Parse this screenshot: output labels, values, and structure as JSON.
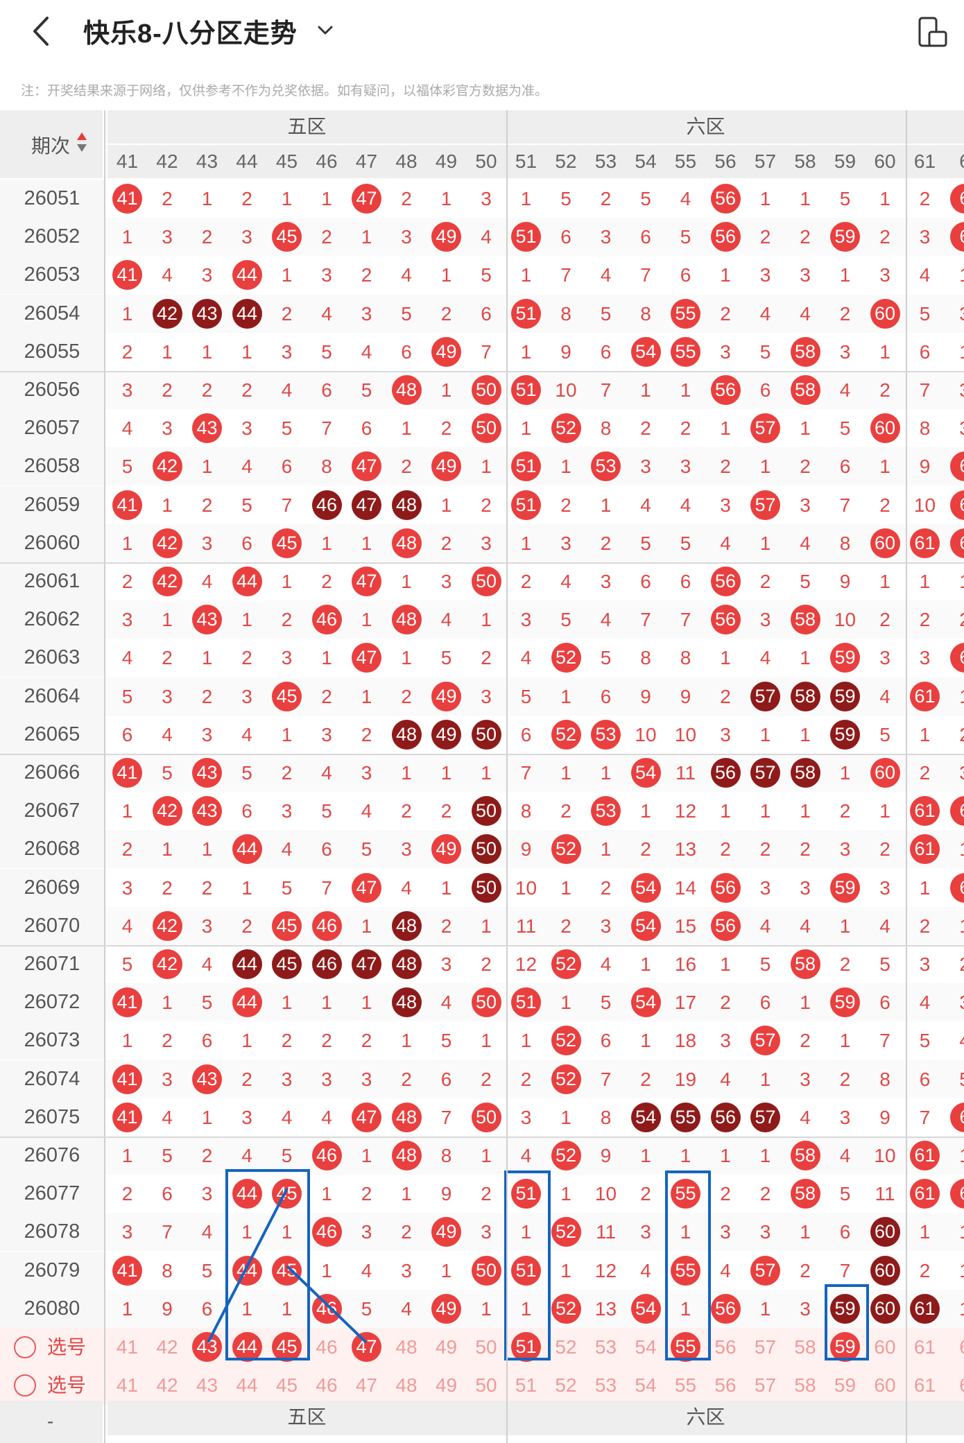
{
  "header": {
    "title": "快乐8-八分区走势",
    "note": "注：开奖结果来源于网络，仅供参考不作为兑奖依据。如有疑问，以福体彩官方数据为准。"
  },
  "table": {
    "period_header": "期次",
    "zones": [
      "五区",
      "六区"
    ],
    "columns": [
      "41",
      "42",
      "43",
      "44",
      "45",
      "46",
      "47",
      "48",
      "49",
      "50",
      "51",
      "52",
      "53",
      "54",
      "55",
      "56",
      "57",
      "58",
      "59",
      "60",
      "61",
      "6"
    ],
    "rows": [
      {
        "period": "26051",
        "cells": [
          "41",
          "2",
          "1",
          "2",
          "1",
          "1",
          "47",
          "2",
          "1",
          "3",
          "1",
          "5",
          "2",
          "5",
          "4",
          "56",
          "1",
          "1",
          "5",
          "1",
          "2",
          "6"
        ]
      },
      {
        "period": "26052",
        "cells": [
          "1",
          "3",
          "2",
          "3",
          "45",
          "2",
          "1",
          "3",
          "49",
          "4",
          "51",
          "6",
          "3",
          "6",
          "5",
          "56",
          "2",
          "2",
          "59",
          "2",
          "3",
          "6"
        ]
      },
      {
        "period": "26053",
        "cells": [
          "41",
          "4",
          "3",
          "44",
          "1",
          "3",
          "2",
          "4",
          "1",
          "5",
          "1",
          "7",
          "4",
          "7",
          "6",
          "1",
          "3",
          "3",
          "1",
          "3",
          "4",
          "1"
        ]
      },
      {
        "period": "26054",
        "cells": [
          "1",
          "42",
          "43",
          "44",
          "2",
          "4",
          "3",
          "5",
          "2",
          "6",
          "51",
          "8",
          "5",
          "8",
          "55",
          "2",
          "4",
          "4",
          "2",
          "60",
          "5",
          "3"
        ]
      },
      {
        "period": "26055",
        "cells": [
          "2",
          "1",
          "1",
          "1",
          "3",
          "5",
          "4",
          "6",
          "49",
          "7",
          "1",
          "9",
          "6",
          "54",
          "55",
          "3",
          "5",
          "58",
          "3",
          "1",
          "6",
          "1"
        ]
      },
      {
        "period": "26056",
        "cells": [
          "3",
          "2",
          "2",
          "2",
          "4",
          "6",
          "5",
          "48",
          "1",
          "50",
          "51",
          "10",
          "7",
          "1",
          "1",
          "56",
          "6",
          "58",
          "4",
          "2",
          "7",
          "3"
        ]
      },
      {
        "period": "26057",
        "cells": [
          "4",
          "3",
          "43",
          "3",
          "5",
          "7",
          "6",
          "1",
          "2",
          "50",
          "1",
          "52",
          "8",
          "2",
          "2",
          "1",
          "57",
          "1",
          "5",
          "60",
          "8",
          "3"
        ]
      },
      {
        "period": "26058",
        "cells": [
          "5",
          "42",
          "1",
          "4",
          "6",
          "8",
          "47",
          "2",
          "49",
          "1",
          "51",
          "1",
          "53",
          "3",
          "3",
          "2",
          "1",
          "2",
          "6",
          "1",
          "9",
          "6"
        ]
      },
      {
        "period": "26059",
        "cells": [
          "41",
          "1",
          "2",
          "5",
          "7",
          "46",
          "47",
          "48",
          "1",
          "2",
          "51",
          "2",
          "1",
          "4",
          "4",
          "3",
          "57",
          "3",
          "7",
          "2",
          "10",
          "6"
        ]
      },
      {
        "period": "26060",
        "cells": [
          "1",
          "42",
          "3",
          "6",
          "45",
          "1",
          "1",
          "48",
          "2",
          "3",
          "1",
          "3",
          "2",
          "5",
          "5",
          "4",
          "1",
          "4",
          "8",
          "60",
          "61",
          "6"
        ]
      },
      {
        "period": "26061",
        "cells": [
          "2",
          "42",
          "4",
          "44",
          "1",
          "2",
          "47",
          "1",
          "3",
          "50",
          "2",
          "4",
          "3",
          "6",
          "6",
          "56",
          "2",
          "5",
          "9",
          "1",
          "1",
          "1"
        ]
      },
      {
        "period": "26062",
        "cells": [
          "3",
          "1",
          "43",
          "1",
          "2",
          "46",
          "1",
          "48",
          "4",
          "1",
          "3",
          "5",
          "4",
          "7",
          "7",
          "56",
          "3",
          "58",
          "10",
          "2",
          "2",
          "2"
        ]
      },
      {
        "period": "26063",
        "cells": [
          "4",
          "2",
          "1",
          "2",
          "3",
          "1",
          "47",
          "1",
          "5",
          "2",
          "4",
          "52",
          "5",
          "8",
          "8",
          "1",
          "4",
          "1",
          "59",
          "3",
          "3",
          "6"
        ]
      },
      {
        "period": "26064",
        "cells": [
          "5",
          "3",
          "2",
          "3",
          "45",
          "2",
          "1",
          "2",
          "49",
          "3",
          "5",
          "1",
          "6",
          "9",
          "9",
          "2",
          "57",
          "58",
          "59",
          "4",
          "61",
          "1"
        ]
      },
      {
        "period": "26065",
        "cells": [
          "6",
          "4",
          "3",
          "4",
          "1",
          "3",
          "2",
          "48",
          "49",
          "50",
          "6",
          "52",
          "53",
          "10",
          "10",
          "3",
          "1",
          "1",
          "59",
          "5",
          "1",
          "2"
        ]
      },
      {
        "period": "26066",
        "cells": [
          "41",
          "5",
          "43",
          "5",
          "2",
          "4",
          "3",
          "1",
          "1",
          "1",
          "7",
          "1",
          "1",
          "54",
          "11",
          "56",
          "57",
          "58",
          "1",
          "60",
          "2",
          "3"
        ]
      },
      {
        "period": "26067",
        "cells": [
          "1",
          "42",
          "43",
          "6",
          "3",
          "5",
          "4",
          "2",
          "2",
          "50",
          "8",
          "2",
          "53",
          "1",
          "12",
          "1",
          "1",
          "1",
          "2",
          "1",
          "61",
          "6"
        ]
      },
      {
        "period": "26068",
        "cells": [
          "2",
          "1",
          "1",
          "44",
          "4",
          "6",
          "5",
          "3",
          "49",
          "50",
          "9",
          "52",
          "1",
          "2",
          "13",
          "2",
          "2",
          "2",
          "3",
          "2",
          "61",
          "1"
        ]
      },
      {
        "period": "26069",
        "cells": [
          "3",
          "2",
          "2",
          "1",
          "5",
          "7",
          "47",
          "4",
          "1",
          "50",
          "10",
          "1",
          "2",
          "54",
          "14",
          "56",
          "3",
          "3",
          "59",
          "3",
          "1",
          "6"
        ]
      },
      {
        "period": "26070",
        "cells": [
          "4",
          "42",
          "3",
          "2",
          "45",
          "46",
          "1",
          "48",
          "2",
          "1",
          "11",
          "2",
          "3",
          "54",
          "15",
          "56",
          "4",
          "4",
          "1",
          "4",
          "2",
          "1"
        ]
      },
      {
        "period": "26071",
        "cells": [
          "5",
          "42",
          "4",
          "44",
          "45",
          "46",
          "47",
          "48",
          "3",
          "2",
          "12",
          "52",
          "4",
          "1",
          "16",
          "1",
          "5",
          "58",
          "2",
          "5",
          "3",
          "2"
        ]
      },
      {
        "period": "26072",
        "cells": [
          "41",
          "1",
          "5",
          "44",
          "1",
          "1",
          "1",
          "48",
          "4",
          "50",
          "51",
          "1",
          "5",
          "54",
          "17",
          "2",
          "6",
          "1",
          "59",
          "6",
          "4",
          "3"
        ]
      },
      {
        "period": "26073",
        "cells": [
          "1",
          "2",
          "6",
          "1",
          "2",
          "2",
          "2",
          "1",
          "5",
          "1",
          "1",
          "52",
          "6",
          "1",
          "18",
          "3",
          "57",
          "2",
          "1",
          "7",
          "5",
          "4"
        ]
      },
      {
        "period": "26074",
        "cells": [
          "41",
          "3",
          "43",
          "2",
          "3",
          "3",
          "3",
          "2",
          "6",
          "2",
          "2",
          "52",
          "7",
          "2",
          "19",
          "4",
          "1",
          "3",
          "2",
          "8",
          "6",
          "5"
        ]
      },
      {
        "period": "26075",
        "cells": [
          "41",
          "4",
          "1",
          "3",
          "4",
          "4",
          "47",
          "48",
          "7",
          "50",
          "3",
          "1",
          "8",
          "54",
          "55",
          "56",
          "57",
          "4",
          "3",
          "9",
          "7",
          "6"
        ]
      },
      {
        "period": "26076",
        "cells": [
          "1",
          "5",
          "2",
          "4",
          "5",
          "46",
          "1",
          "48",
          "8",
          "1",
          "4",
          "52",
          "9",
          "1",
          "1",
          "1",
          "1",
          "58",
          "4",
          "10",
          "61",
          "1"
        ]
      },
      {
        "period": "26077",
        "cells": [
          "2",
          "6",
          "3",
          "44",
          "45",
          "1",
          "2",
          "1",
          "9",
          "2",
          "51",
          "1",
          "10",
          "2",
          "55",
          "2",
          "2",
          "58",
          "5",
          "11",
          "61",
          "6"
        ]
      },
      {
        "period": "26078",
        "cells": [
          "3",
          "7",
          "4",
          "1",
          "1",
          "46",
          "3",
          "2",
          "49",
          "3",
          "1",
          "52",
          "11",
          "3",
          "1",
          "3",
          "3",
          "1",
          "6",
          "60",
          "1",
          "1"
        ]
      },
      {
        "period": "26079",
        "cells": [
          "41",
          "8",
          "5",
          "44",
          "45",
          "1",
          "4",
          "3",
          "1",
          "50",
          "51",
          "1",
          "12",
          "4",
          "55",
          "4",
          "57",
          "2",
          "7",
          "60",
          "2",
          "1"
        ]
      },
      {
        "period": "26080",
        "cells": [
          "1",
          "9",
          "6",
          "1",
          "1",
          "46",
          "5",
          "4",
          "49",
          "1",
          "1",
          "52",
          "13",
          "54",
          "1",
          "56",
          "1",
          "3",
          "59",
          "60",
          "61",
          "1"
        ]
      }
    ],
    "select_label": "选号",
    "select_row1": [
      "41",
      "42",
      "43",
      "44",
      "45",
      "46",
      "47",
      "48",
      "49",
      "50",
      "51",
      "52",
      "53",
      "54",
      "55",
      "56",
      "57",
      "58",
      "59",
      "60",
      "61",
      "6"
    ],
    "select_row2": [
      "41",
      "42",
      "43",
      "44",
      "45",
      "46",
      "47",
      "48",
      "49",
      "50",
      "51",
      "52",
      "53",
      "54",
      "55",
      "56",
      "57",
      "58",
      "59",
      "60",
      "61",
      "6"
    ],
    "selected_row1": [
      "43",
      "44",
      "45",
      "47",
      "51",
      "55",
      "59"
    ],
    "footer_zones": [
      "五区",
      "六区"
    ],
    "footer_period": "-"
  },
  "icons": {
    "back": "back-chevron-icon",
    "dropdown": "chevron-down-icon",
    "phone": "phone-rotate-icon",
    "sort": "sort-icon"
  },
  "colors": {
    "ball": "#ea3f3f",
    "ball_dark": "#8f1a1a",
    "number": "#e04848",
    "annotation": "#1565c0"
  }
}
